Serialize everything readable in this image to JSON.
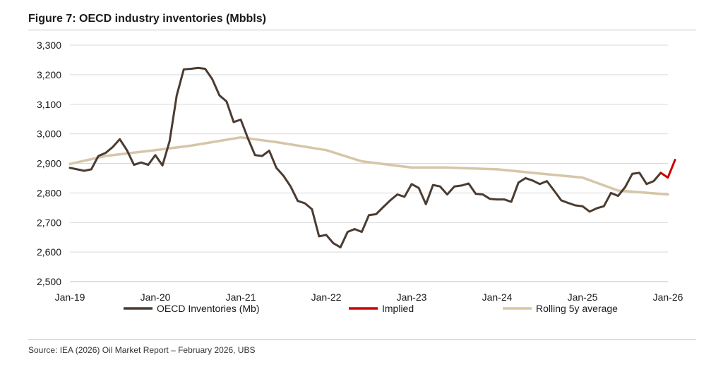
{
  "title": "Figure 7: OECD industry inventories (Mbbls)",
  "source": "Source: IEA (2026) Oil Market Report – February 2026, UBS",
  "chart_data": {
    "type": "line",
    "ylim": [
      2500,
      3300
    ],
    "yticks": [
      2500,
      2600,
      2700,
      2800,
      2900,
      3000,
      3100,
      3200,
      3300
    ],
    "ytick_labels": [
      "2,500",
      "2,600",
      "2,700",
      "2,800",
      "2,900",
      "3,000",
      "3,100",
      "3,200",
      "3,300"
    ],
    "xlim": [
      "2019-01",
      "2026-01"
    ],
    "xtick_labels": [
      "Jan-19",
      "Jan-20",
      "Jan-21",
      "Jan-22",
      "Jan-23",
      "Jan-24",
      "Jan-25",
      "Jan-26"
    ],
    "grid": "horizontal",
    "legend_position": "bottom",
    "series": [
      {
        "name": "OECD Inventories (Mb)",
        "color": "#4a3c32",
        "x": [
          "2019-01",
          "2019-02",
          "2019-03",
          "2019-04",
          "2019-05",
          "2019-06",
          "2019-07",
          "2019-08",
          "2019-09",
          "2019-10",
          "2019-11",
          "2019-12",
          "2020-01",
          "2020-02",
          "2020-03",
          "2020-04",
          "2020-05",
          "2020-06",
          "2020-07",
          "2020-08",
          "2020-09",
          "2020-10",
          "2020-11",
          "2020-12",
          "2021-01",
          "2021-02",
          "2021-03",
          "2021-04",
          "2021-05",
          "2021-06",
          "2021-07",
          "2021-08",
          "2021-09",
          "2021-10",
          "2021-11",
          "2021-12",
          "2022-01",
          "2022-02",
          "2022-03",
          "2022-04",
          "2022-05",
          "2022-06",
          "2022-07",
          "2022-08",
          "2022-09",
          "2022-10",
          "2022-11",
          "2022-12",
          "2023-01",
          "2023-02",
          "2023-03",
          "2023-04",
          "2023-05",
          "2023-06",
          "2023-07",
          "2023-08",
          "2023-09",
          "2023-10",
          "2023-11",
          "2023-12",
          "2024-01",
          "2024-02",
          "2024-03",
          "2024-04",
          "2024-05",
          "2024-06",
          "2024-07",
          "2024-08",
          "2024-09",
          "2024-10",
          "2024-11",
          "2024-12",
          "2025-01",
          "2025-02",
          "2025-03",
          "2025-04",
          "2025-05",
          "2025-06",
          "2025-07",
          "2025-08",
          "2025-09",
          "2025-10",
          "2025-11",
          "2025-12"
        ],
        "values": [
          2885,
          2880,
          2875,
          2880,
          2925,
          2935,
          2955,
          2982,
          2945,
          2895,
          2903,
          2895,
          2928,
          2893,
          2975,
          3130,
          3218,
          3220,
          3223,
          3220,
          3185,
          3130,
          3110,
          3040,
          3048,
          2985,
          2928,
          2925,
          2943,
          2885,
          2858,
          2822,
          2773,
          2765,
          2745,
          2653,
          2658,
          2630,
          2616,
          2668,
          2678,
          2668,
          2725,
          2728,
          2752,
          2775,
          2795,
          2787,
          2830,
          2817,
          2762,
          2827,
          2822,
          2795,
          2822,
          2825,
          2832,
          2797,
          2795,
          2780,
          2778,
          2778,
          2770,
          2835,
          2850,
          2842,
          2830,
          2840,
          2808,
          2775,
          2766,
          2758,
          2755,
          2737,
          2748,
          2755,
          2800,
          2790,
          2820,
          2865,
          2868,
          2830,
          2840,
          2868
        ]
      },
      {
        "name": "Implied",
        "color": "#cc0000",
        "x": [
          "2025-12",
          "2026-01",
          "2026-02"
        ],
        "values": [
          2868,
          2852,
          2912
        ]
      },
      {
        "name": "Rolling 5y average",
        "color": "#d6c6a8",
        "x": [
          "2019-01",
          "2019-06",
          "2020-01",
          "2020-06",
          "2021-01",
          "2021-06",
          "2022-01",
          "2022-06",
          "2023-01",
          "2023-06",
          "2024-01",
          "2024-06",
          "2025-01",
          "2025-06",
          "2026-01"
        ],
        "values": [
          2898,
          2925,
          2945,
          2960,
          2988,
          2972,
          2945,
          2907,
          2886,
          2886,
          2880,
          2868,
          2852,
          2808,
          2795
        ]
      }
    ]
  }
}
